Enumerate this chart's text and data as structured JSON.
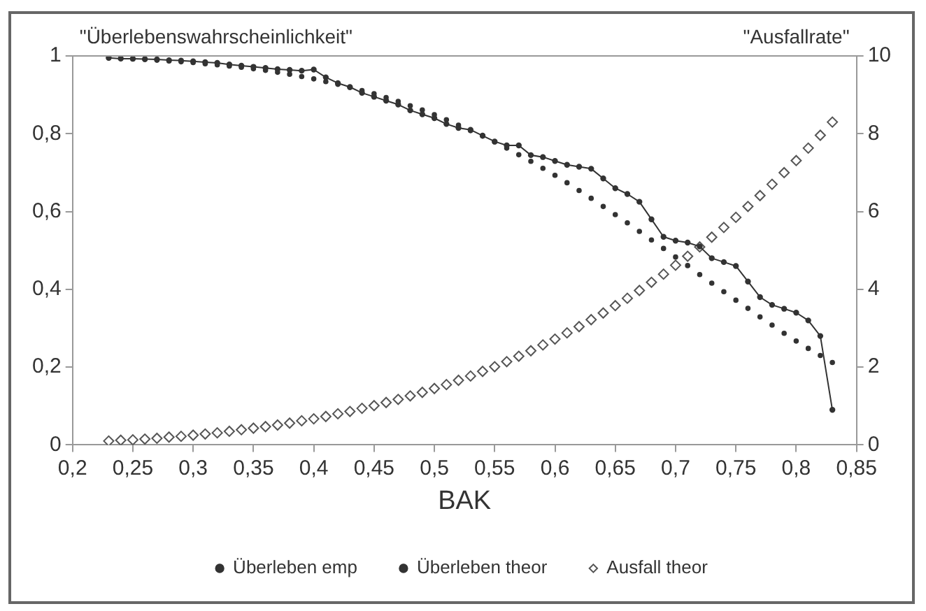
{
  "chart_data": {
    "type": "line",
    "xlabel": "BAK",
    "ylabel": "\"Überlebenswahrscheinlichkeit\"",
    "y2label": "\"Ausfallrate\"",
    "x": [
      0.23,
      0.24,
      0.25,
      0.26,
      0.27,
      0.28,
      0.29,
      0.3,
      0.31,
      0.32,
      0.33,
      0.34,
      0.35,
      0.36,
      0.37,
      0.38,
      0.39,
      0.4,
      0.41,
      0.42,
      0.43,
      0.44,
      0.45,
      0.46,
      0.47,
      0.48,
      0.49,
      0.5,
      0.51,
      0.52,
      0.53,
      0.54,
      0.55,
      0.56,
      0.57,
      0.58,
      0.59,
      0.6,
      0.61,
      0.62,
      0.63,
      0.64,
      0.65,
      0.66,
      0.67,
      0.68,
      0.69,
      0.7,
      0.71,
      0.72,
      0.73,
      0.74,
      0.75,
      0.76,
      0.77,
      0.78,
      0.79,
      0.8,
      0.81,
      0.82,
      0.83
    ],
    "series": [
      {
        "name": "Überleben emp",
        "type": "line",
        "color": "#333333",
        "marker": "circle",
        "line_style": "solid",
        "values": [
          0.995,
          0.993,
          0.993,
          0.992,
          0.991,
          0.989,
          0.988,
          0.986,
          0.984,
          0.982,
          0.978,
          0.975,
          0.972,
          0.969,
          0.966,
          0.964,
          0.962,
          0.965,
          0.945,
          0.93,
          0.92,
          0.905,
          0.895,
          0.885,
          0.875,
          0.86,
          0.85,
          0.84,
          0.825,
          0.815,
          0.81,
          0.795,
          0.78,
          0.77,
          0.77,
          0.745,
          0.74,
          0.73,
          0.72,
          0.715,
          0.71,
          0.685,
          0.66,
          0.645,
          0.625,
          0.58,
          0.535,
          0.525,
          0.52,
          0.51,
          0.48,
          0.47,
          0.46,
          0.42,
          0.38,
          0.36,
          0.35,
          0.34,
          0.32,
          0.28,
          0.09
        ]
      },
      {
        "name": "Überleben theor",
        "type": "scatter",
        "color": "#333333",
        "marker": "circle",
        "values": [
          0.995,
          0.994,
          0.992,
          0.991,
          0.989,
          0.987,
          0.985,
          0.983,
          0.98,
          0.977,
          0.974,
          0.971,
          0.967,
          0.963,
          0.958,
          0.953,
          0.947,
          0.941,
          0.934,
          0.927,
          0.919,
          0.911,
          0.903,
          0.893,
          0.883,
          0.872,
          0.861,
          0.849,
          0.836,
          0.822,
          0.808,
          0.794,
          0.779,
          0.763,
          0.746,
          0.729,
          0.711,
          0.693,
          0.674,
          0.654,
          0.634,
          0.613,
          0.592,
          0.571,
          0.549,
          0.527,
          0.505,
          0.483,
          0.461,
          0.438,
          0.416,
          0.394,
          0.372,
          0.351,
          0.329,
          0.308,
          0.287,
          0.267,
          0.248,
          0.23,
          0.212
        ]
      },
      {
        "name": "Ausfall theor",
        "type": "scatter",
        "axis": "y2",
        "color": "#555555",
        "marker": "diamond",
        "values": [
          0.1,
          0.12,
          0.13,
          0.15,
          0.17,
          0.2,
          0.22,
          0.25,
          0.28,
          0.31,
          0.35,
          0.39,
          0.43,
          0.47,
          0.51,
          0.56,
          0.62,
          0.67,
          0.73,
          0.8,
          0.86,
          0.94,
          1.01,
          1.09,
          1.17,
          1.26,
          1.35,
          1.45,
          1.55,
          1.66,
          1.77,
          1.89,
          2.01,
          2.14,
          2.28,
          2.42,
          2.57,
          2.72,
          2.88,
          3.04,
          3.22,
          3.39,
          3.58,
          3.77,
          3.97,
          4.18,
          4.39,
          4.62,
          4.85,
          5.09,
          5.34,
          5.59,
          5.85,
          6.13,
          6.41,
          6.7,
          7.0,
          7.31,
          7.63,
          7.96,
          8.3
        ]
      }
    ],
    "xlim": [
      0.2,
      0.85
    ],
    "xticks": [
      {
        "value": 0.2,
        "label": "0,2"
      },
      {
        "value": 0.25,
        "label": "0,25"
      },
      {
        "value": 0.3,
        "label": "0,3"
      },
      {
        "value": 0.35,
        "label": "0,35"
      },
      {
        "value": 0.4,
        "label": "0,4"
      },
      {
        "value": 0.45,
        "label": "0,45"
      },
      {
        "value": 0.5,
        "label": "0,5"
      },
      {
        "value": 0.55,
        "label": "0,55"
      },
      {
        "value": 0.6,
        "label": "0,6"
      },
      {
        "value": 0.65,
        "label": "0,65"
      },
      {
        "value": 0.7,
        "label": "0,7"
      },
      {
        "value": 0.75,
        "label": "0,75"
      },
      {
        "value": 0.8,
        "label": "0,8"
      },
      {
        "value": 0.85,
        "label": "0,85"
      }
    ],
    "ylim": [
      0,
      1
    ],
    "yticks": [
      0,
      {
        "value": 0.2,
        "label": "0,2"
      },
      {
        "value": 0.4,
        "label": "0,4"
      },
      {
        "value": 0.6,
        "label": "0,6"
      },
      {
        "value": 0.8,
        "label": "0,8"
      },
      1
    ],
    "y2lim": [
      0,
      10
    ],
    "y2ticks": [
      0,
      2,
      4,
      6,
      8,
      10
    ],
    "grid": false,
    "legend": "bottom"
  }
}
